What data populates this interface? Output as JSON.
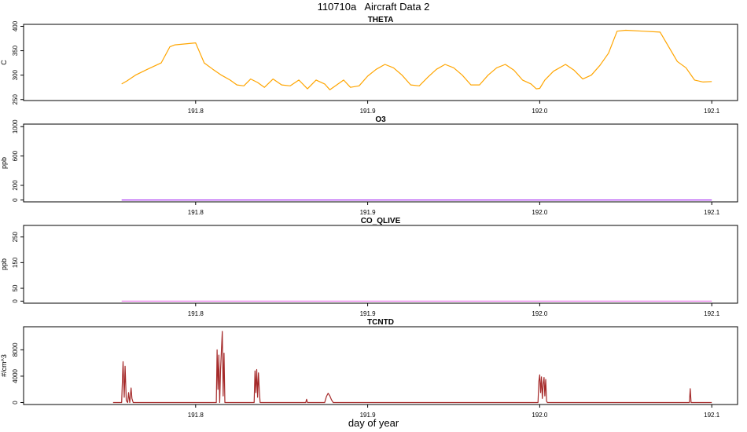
{
  "title": "110710a   Aircraft Data 2",
  "xlabel": "day of year",
  "chart_data": [
    {
      "type": "line",
      "title": "THETA",
      "ylabel": "C",
      "color": "#FFA500",
      "xlim": [
        191.7,
        192.115
      ],
      "ylim": [
        248,
        404
      ],
      "xticks": [
        191.8,
        191.9,
        192.0,
        192.1
      ],
      "xtick_labels": [
        "191.8",
        "191.9",
        "192.0",
        "192.1"
      ],
      "yticks": [
        250,
        300,
        350,
        400
      ],
      "ytick_labels": [
        "250",
        "300",
        "350",
        "400"
      ],
      "x": [
        191.757,
        191.76,
        191.765,
        191.772,
        191.78,
        191.785,
        191.788,
        191.8,
        191.805,
        191.81,
        191.815,
        191.82,
        191.824,
        191.828,
        191.832,
        191.836,
        191.84,
        191.845,
        191.85,
        191.855,
        191.86,
        191.865,
        191.87,
        191.875,
        191.878,
        191.882,
        191.886,
        191.89,
        191.895,
        191.9,
        191.905,
        191.91,
        191.915,
        191.92,
        191.925,
        191.93,
        191.935,
        191.94,
        191.945,
        191.95,
        191.955,
        191.96,
        191.965,
        191.97,
        191.975,
        191.98,
        191.985,
        191.99,
        191.995,
        191.998,
        192.0,
        192.003,
        192.008,
        192.015,
        192.02,
        192.025,
        192.03,
        192.035,
        192.04,
        192.045,
        192.05,
        192.06,
        192.07,
        192.08,
        192.085,
        192.09,
        192.095,
        192.1
      ],
      "y": [
        282,
        288,
        300,
        312,
        325,
        358,
        362,
        366,
        325,
        312,
        300,
        290,
        280,
        278,
        292,
        285,
        275,
        292,
        280,
        278,
        290,
        272,
        290,
        282,
        270,
        280,
        290,
        275,
        278,
        298,
        312,
        322,
        315,
        300,
        280,
        278,
        296,
        312,
        322,
        315,
        300,
        280,
        280,
        300,
        315,
        322,
        310,
        290,
        282,
        272,
        273,
        290,
        308,
        322,
        310,
        292,
        300,
        320,
        345,
        390,
        392,
        390,
        388,
        328,
        315,
        290,
        286,
        287
      ]
    },
    {
      "type": "line",
      "title": "O3",
      "ylabel": "ppb",
      "color": "#A020F0",
      "xlim": [
        191.7,
        192.115
      ],
      "ylim": [
        -25,
        1035
      ],
      "xticks": [
        191.8,
        191.9,
        192.0,
        192.1
      ],
      "xtick_labels": [
        "191.8",
        "191.9",
        "192.0",
        "192.1"
      ],
      "yticks": [
        0,
        200,
        600,
        1000
      ],
      "ytick_labels": [
        "0",
        "200",
        "600",
        "1000"
      ],
      "x": [
        191.757,
        192.1
      ],
      "y": [
        0,
        0
      ]
    },
    {
      "type": "line",
      "title": "CO_QLIVE",
      "ylabel": "ppb",
      "color": "#EE82EE",
      "xlim": [
        191.7,
        192.115
      ],
      "ylim": [
        -8,
        295
      ],
      "xticks": [
        191.8,
        191.9,
        192.0,
        192.1
      ],
      "xtick_labels": [
        "191.8",
        "191.9",
        "192.0",
        "192.1"
      ],
      "yticks": [
        0,
        50,
        150,
        250
      ],
      "ytick_labels": [
        "0",
        "50",
        "150",
        "250"
      ],
      "x": [
        191.757,
        192.1
      ],
      "y": [
        0,
        0
      ]
    },
    {
      "type": "line",
      "title": "TCNTD",
      "ylabel": "#/cm^3",
      "color": "#A52A2A",
      "xlim": [
        191.7,
        192.115
      ],
      "ylim": [
        -300,
        11500
      ],
      "xticks": [
        191.8,
        191.9,
        192.0,
        192.1
      ],
      "xtick_labels": [
        "191.8",
        "191.9",
        "192.0",
        "192.1"
      ],
      "yticks": [
        0,
        4000,
        8000
      ],
      "ytick_labels": [
        "0",
        "4000",
        "8000"
      ],
      "x": [
        191.752,
        191.757,
        191.7578,
        191.7585,
        191.759,
        191.7597,
        191.7605,
        191.761,
        191.7617,
        191.7625,
        191.763,
        191.7637,
        191.7645,
        191.765,
        191.812,
        191.8125,
        191.813,
        191.8135,
        191.814,
        191.8145,
        191.8155,
        191.816,
        191.8165,
        191.817,
        191.834,
        191.8345,
        191.835,
        191.8355,
        191.836,
        191.8365,
        191.837,
        191.8375,
        191.864,
        191.8645,
        191.865,
        191.875,
        191.876,
        191.877,
        191.878,
        191.879,
        191.88,
        191.999,
        191.9995,
        192.0,
        192.0005,
        192.001,
        192.0015,
        192.002,
        192.0025,
        192.003,
        192.0035,
        192.004,
        192.0045,
        192.005,
        192.087,
        192.0875,
        192.088,
        192.1
      ],
      "y": [
        0,
        0,
        6200,
        800,
        5500,
        300,
        0,
        1500,
        0,
        2200,
        600,
        0,
        0,
        0,
        0,
        8000,
        2000,
        7200,
        0,
        5000,
        10800,
        1000,
        7500,
        0,
        0,
        4800,
        1500,
        5000,
        800,
        4500,
        2000,
        0,
        0,
        500,
        0,
        0,
        900,
        1400,
        1000,
        400,
        0,
        0,
        3200,
        4200,
        1500,
        3900,
        600,
        2800,
        3800,
        1000,
        3500,
        200,
        0,
        0,
        0,
        2100,
        0,
        0
      ]
    }
  ]
}
